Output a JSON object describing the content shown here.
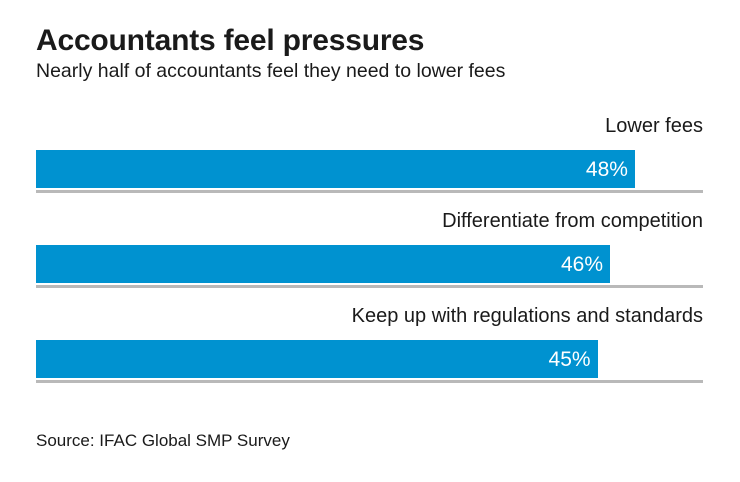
{
  "chart_data": {
    "type": "bar",
    "orientation": "horizontal",
    "title": "Accountants feel pressures",
    "subtitle": "Nearly half of accountants feel they need to lower fees",
    "source": "Source: IFAC Global SMP Survey",
    "categories": [
      "Lower fees",
      "Differentiate from competition",
      "Keep up with regulations and standards"
    ],
    "values": [
      48,
      46,
      45
    ],
    "value_labels": [
      "48%",
      "46%",
      "45%"
    ],
    "xlim": [
      0,
      53.45
    ],
    "grid": false,
    "legend": "none",
    "category_label_position": "above-bar, right-aligned",
    "value_label_position": "inside-bar, right-aligned",
    "colors": {
      "bar": "#0092d0",
      "value_label": "#ffffff",
      "baseline": "#b9b9b9",
      "text": "#1a1a1a",
      "background": "#ffffff"
    }
  }
}
